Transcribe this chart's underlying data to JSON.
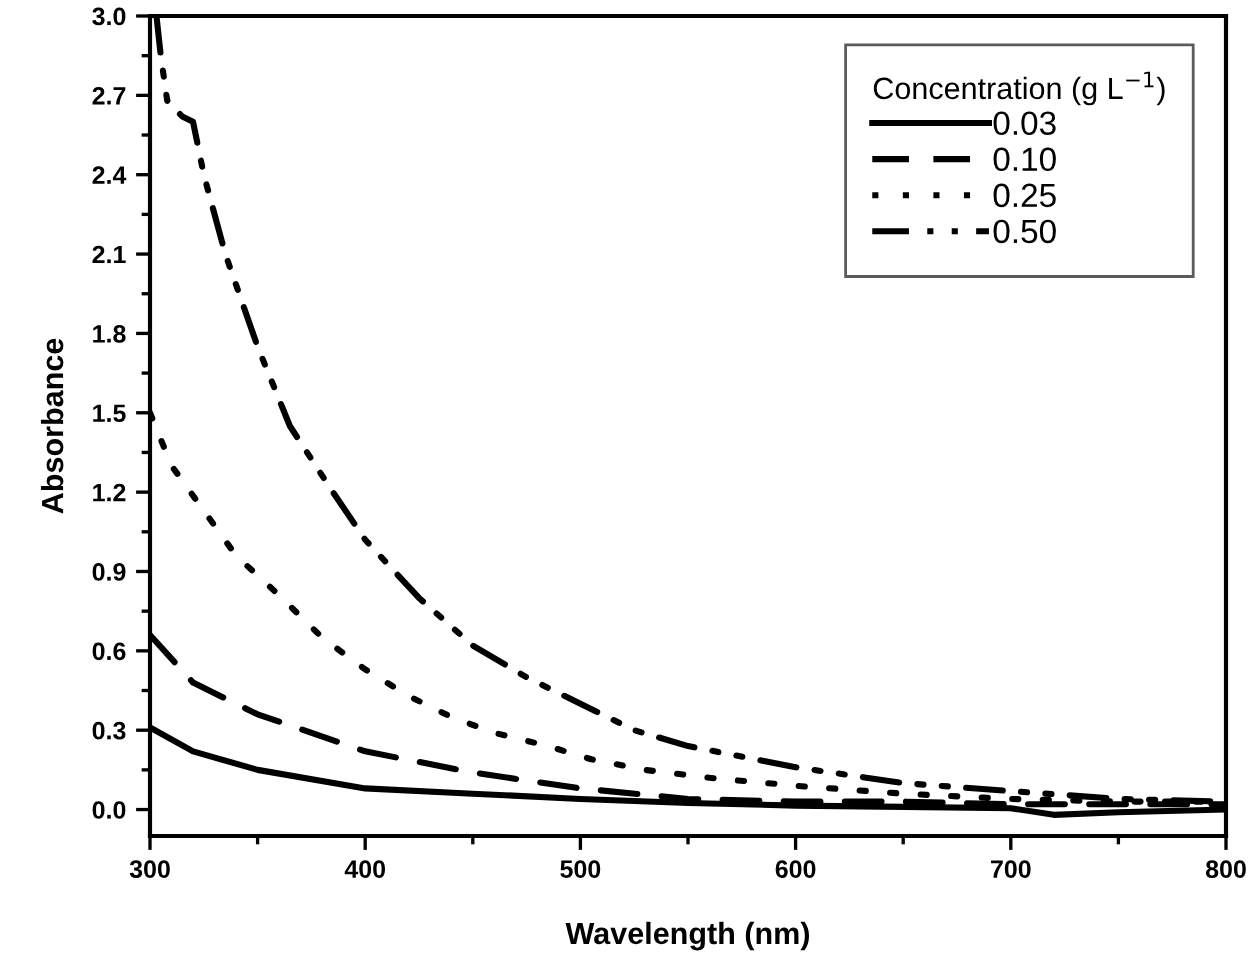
{
  "chart_data": {
    "type": "line",
    "xlabel": "Wavelength (nm)",
    "ylabel": "Absorbance",
    "legend_title": "Concentration (g L$^{−1}$)",
    "xlim": [
      300,
      800
    ],
    "ylim": [
      -0.1,
      3.0
    ],
    "xticks": [
      300,
      400,
      500,
      600,
      700,
      800
    ],
    "yticks": [
      {
        "value": 0,
        "label": "0.0"
      },
      0.3,
      0.6,
      0.9,
      1.2,
      1.5,
      1.8,
      2.1,
      2.4,
      2.7,
      {
        "value": 3,
        "label": "3.0"
      }
    ],
    "legend": "top right",
    "grid": false,
    "series": [
      {
        "name": "0.03",
        "color": "#000000",
        "line_style": "solid",
        "x": [
          300,
          320,
          350,
          400,
          450,
          500,
          550,
          600,
          650,
          700,
          720,
          750,
          800
        ],
        "values": [
          0.31,
          0.22,
          0.15,
          0.08,
          0.06,
          0.04,
          0.025,
          0.015,
          0.01,
          0.005,
          -0.02,
          -0.01,
          0.0
        ]
      },
      {
        "name": "0.10",
        "color": "#000000",
        "line_style": "dashed",
        "x": [
          300,
          320,
          350,
          400,
          450,
          500,
          550,
          600,
          650,
          700,
          750,
          800
        ],
        "values": [
          0.66,
          0.48,
          0.36,
          0.22,
          0.14,
          0.08,
          0.04,
          0.03,
          0.03,
          0.02,
          0.02,
          0.02
        ]
      },
      {
        "name": "0.25",
        "color": "#000000",
        "line_style": "dotted",
        "x": [
          300,
          310,
          325,
          340,
          360,
          380,
          400,
          420,
          440,
          460,
          485,
          505,
          530,
          560,
          600,
          650,
          700,
          750,
          800
        ],
        "values": [
          1.5,
          1.3,
          1.13,
          0.96,
          0.81,
          0.65,
          0.53,
          0.43,
          0.35,
          0.29,
          0.24,
          0.19,
          0.15,
          0.12,
          0.09,
          0.06,
          0.04,
          0.03,
          0.03
        ]
      },
      {
        "name": "0.50",
        "color": "#000000",
        "line_style": "dashdotdot",
        "x": [
          303,
          305,
          308,
          315,
          320,
          325,
          335,
          350,
          365,
          385,
          400,
          425,
          450,
          475,
          500,
          525,
          550,
          600,
          650,
          700,
          750,
          800
        ],
        "values": [
          3.0,
          2.85,
          2.68,
          2.62,
          2.6,
          2.4,
          2.1,
          1.75,
          1.45,
          1.2,
          1.02,
          0.8,
          0.62,
          0.5,
          0.4,
          0.3,
          0.24,
          0.16,
          0.1,
          0.07,
          0.04,
          0.03
        ]
      }
    ]
  }
}
